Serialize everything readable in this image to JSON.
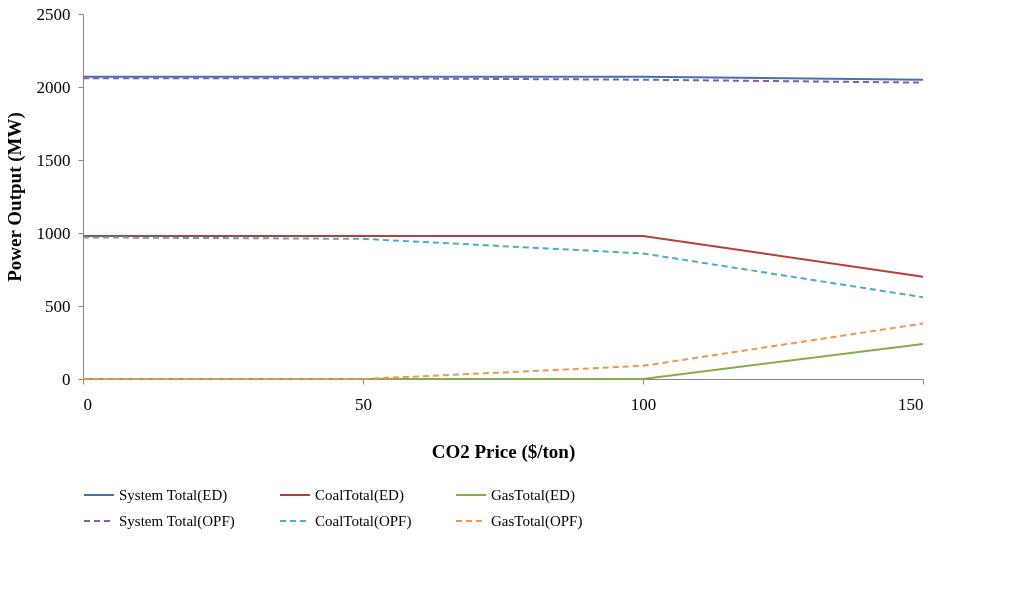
{
  "chart_data": {
    "type": "line",
    "xlabel": "CO2 Price ($/ton)",
    "ylabel": "Power Output (MW)",
    "x": [
      0,
      50,
      100,
      150
    ],
    "xlim": [
      0,
      150
    ],
    "xticks": [
      0,
      50,
      100,
      150
    ],
    "ylim": [
      0,
      2500
    ],
    "yticks": [
      0,
      500,
      1000,
      1500,
      2000,
      2500
    ],
    "grid": false,
    "legend": "bottom",
    "marker": "none",
    "series": [
      {
        "name": "System Total(ED)",
        "color": "#4a6fb0",
        "line_style": "solid",
        "values": [
          2070,
          2070,
          2070,
          2050
        ]
      },
      {
        "name": "CoalTotal(ED)",
        "color": "#b6403e",
        "line_style": "solid",
        "values": [
          980,
          980,
          980,
          700
        ]
      },
      {
        "name": "GasTotal(ED)",
        "color": "#8aab4a",
        "line_style": "solid",
        "values": [
          0,
          0,
          0,
          240
        ]
      },
      {
        "name": "System Total(OPF)",
        "color": "#7d62a8",
        "line_style": "dashed",
        "values": [
          2060,
          2060,
          2050,
          2030
        ]
      },
      {
        "name": "CoalTotal(OPF)",
        "color": "#4cadc6",
        "line_style": "dashed",
        "values": [
          970,
          960,
          860,
          560
        ]
      },
      {
        "name": "GasTotal(OPF)",
        "color": "#f3954a",
        "line_style": "dashed",
        "values": [
          0,
          0,
          90,
          380
        ]
      }
    ]
  }
}
